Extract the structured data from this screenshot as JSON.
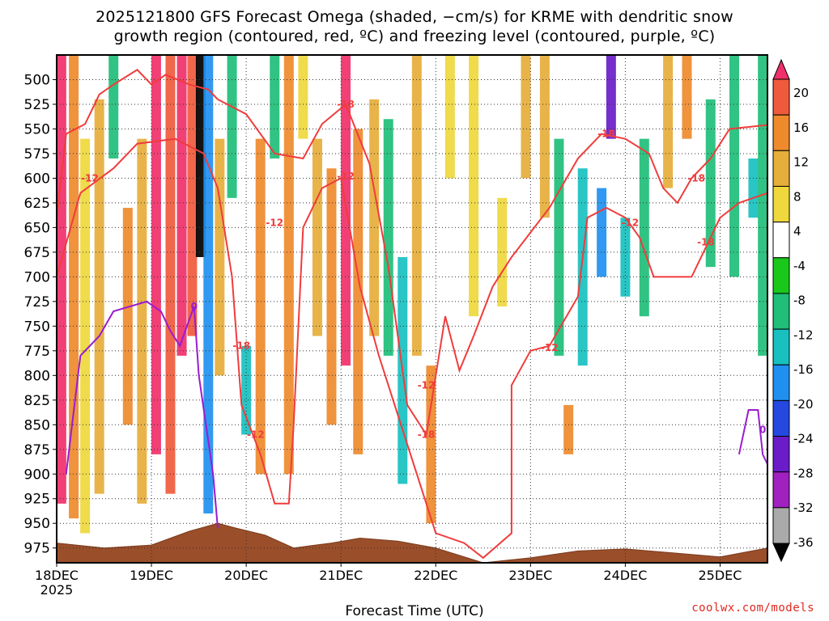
{
  "chart_data": {
    "type": "heatmap",
    "title": "2025121800 GFS Forecast Omega (shaded, −cm/s) for KRME with dendritic snow",
    "subtitle": "growth region (contoured, red, ºC) and freezing level (contoured, purple, ºC)",
    "xlabel": "Forecast Time (UTC)",
    "x_tick_labels": [
      "18DEC",
      "19DEC",
      "20DEC",
      "21DEC",
      "22DEC",
      "23DEC",
      "24DEC",
      "25DEC"
    ],
    "x_year_label": "2025",
    "x_days": [
      18,
      19,
      20,
      21,
      22,
      23,
      24,
      25
    ],
    "xlim_days": [
      18,
      25.5
    ],
    "y_tick_labels": [
      "500",
      "525",
      "550",
      "575",
      "600",
      "625",
      "650",
      "675",
      "700",
      "725",
      "750",
      "775",
      "800",
      "825",
      "850",
      "875",
      "900",
      "925",
      "950",
      "975"
    ],
    "y_levels": [
      500,
      525,
      550,
      575,
      600,
      625,
      650,
      675,
      700,
      725,
      750,
      775,
      800,
      825,
      850,
      875,
      900,
      925,
      950,
      975
    ],
    "ylim_hpa": [
      475,
      990
    ],
    "grid": true,
    "colorbar": {
      "labels": [
        "20",
        "16",
        "12",
        "8",
        "4",
        "-4",
        "-8",
        "-12",
        "-16",
        "-20",
        "-24",
        "-28",
        "-32",
        "-36"
      ],
      "colors": [
        "#f0306a",
        "#f05a3c",
        "#ee8a2c",
        "#e6ae3a",
        "#eed83c",
        "#ffffff",
        "#1ac81a",
        "#20be78",
        "#18c0c0",
        "#2090f0",
        "#2448e0",
        "#6a1cc8",
        "#a020c0",
        "#aaaaaa",
        "#000000"
      ]
    },
    "contour_labels": {
      "red": [
        "-12",
        "-18",
        "-12",
        "-18",
        "-12",
        "-18",
        "-12",
        "-12",
        "-18",
        "-12",
        "-18",
        "-12",
        "-18",
        "-12"
      ],
      "purple": [
        "0",
        "0"
      ]
    },
    "columns": [
      {
        "day": 18.05,
        "v": 20,
        "top": 475,
        "bot": 930
      },
      {
        "day": 18.18,
        "v": 12,
        "top": 475,
        "bot": 945
      },
      {
        "day": 18.3,
        "v": 4,
        "top": 560,
        "bot": 960
      },
      {
        "day": 18.45,
        "v": 8,
        "top": 520,
        "bot": 920
      },
      {
        "day": 18.6,
        "v": -8,
        "top": 475,
        "bot": 580
      },
      {
        "day": 18.75,
        "v": 12,
        "top": 630,
        "bot": 850
      },
      {
        "day": 18.9,
        "v": 8,
        "top": 560,
        "bot": 930
      },
      {
        "day": 19.05,
        "v": 20,
        "top": 475,
        "bot": 880
      },
      {
        "day": 19.2,
        "v": 16,
        "top": 475,
        "bot": 920
      },
      {
        "day": 19.32,
        "v": 20,
        "top": 475,
        "bot": 780
      },
      {
        "day": 19.43,
        "v": 16,
        "top": 475,
        "bot": 760
      },
      {
        "day": 19.52,
        "v": -36,
        "top": 475,
        "bot": 680
      },
      {
        "day": 19.6,
        "v": -16,
        "top": 475,
        "bot": 940
      },
      {
        "day": 19.72,
        "v": 8,
        "top": 560,
        "bot": 800
      },
      {
        "day": 19.85,
        "v": -8,
        "top": 475,
        "bot": 620
      },
      {
        "day": 20.0,
        "v": -12,
        "top": 770,
        "bot": 860
      },
      {
        "day": 20.15,
        "v": 12,
        "top": 560,
        "bot": 900
      },
      {
        "day": 20.3,
        "v": -8,
        "top": 475,
        "bot": 580
      },
      {
        "day": 20.45,
        "v": 12,
        "top": 475,
        "bot": 900
      },
      {
        "day": 20.6,
        "v": 4,
        "top": 475,
        "bot": 560
      },
      {
        "day": 20.75,
        "v": 8,
        "top": 560,
        "bot": 760
      },
      {
        "day": 20.9,
        "v": 12,
        "top": 590,
        "bot": 850
      },
      {
        "day": 21.05,
        "v": 20,
        "top": 475,
        "bot": 790
      },
      {
        "day": 21.18,
        "v": 12,
        "top": 550,
        "bot": 880
      },
      {
        "day": 21.35,
        "v": 8,
        "top": 520,
        "bot": 760
      },
      {
        "day": 21.5,
        "v": -8,
        "top": 540,
        "bot": 780
      },
      {
        "day": 21.65,
        "v": -12,
        "top": 680,
        "bot": 910
      },
      {
        "day": 21.8,
        "v": 8,
        "top": 475,
        "bot": 780
      },
      {
        "day": 21.95,
        "v": 12,
        "top": 790,
        "bot": 950
      },
      {
        "day": 22.15,
        "v": 4,
        "top": 475,
        "bot": 600
      },
      {
        "day": 22.4,
        "v": 4,
        "top": 475,
        "bot": 740
      },
      {
        "day": 22.7,
        "v": 4,
        "top": 620,
        "bot": 730
      },
      {
        "day": 22.95,
        "v": 8,
        "top": 475,
        "bot": 600
      },
      {
        "day": 23.15,
        "v": 8,
        "top": 475,
        "bot": 640
      },
      {
        "day": 23.3,
        "v": -8,
        "top": 560,
        "bot": 780
      },
      {
        "day": 23.4,
        "v": 12,
        "top": 830,
        "bot": 880
      },
      {
        "day": 23.55,
        "v": -12,
        "top": 590,
        "bot": 790
      },
      {
        "day": 23.75,
        "v": -16,
        "top": 610,
        "bot": 700
      },
      {
        "day": 23.85,
        "v": -24,
        "top": 475,
        "bot": 560
      },
      {
        "day": 24.0,
        "v": -12,
        "top": 640,
        "bot": 720
      },
      {
        "day": 24.2,
        "v": -8,
        "top": 560,
        "bot": 740
      },
      {
        "day": 24.45,
        "v": 8,
        "top": 475,
        "bot": 610
      },
      {
        "day": 24.65,
        "v": 12,
        "top": 475,
        "bot": 560
      },
      {
        "day": 24.9,
        "v": -8,
        "top": 520,
        "bot": 690
      },
      {
        "day": 25.15,
        "v": -8,
        "top": 475,
        "bot": 700
      },
      {
        "day": 25.35,
        "v": -12,
        "top": 580,
        "bot": 640
      },
      {
        "day": 25.45,
        "v": -8,
        "top": 475,
        "bot": 780
      }
    ],
    "red_contours": [
      {
        "label": "-12",
        "points": [
          [
            18.0,
            640
          ],
          [
            18.1,
            555
          ],
          [
            18.3,
            545
          ],
          [
            18.45,
            515
          ],
          [
            18.6,
            505
          ],
          [
            18.85,
            490
          ],
          [
            19.0,
            505
          ],
          [
            19.15,
            495
          ],
          [
            19.4,
            505
          ],
          [
            19.6,
            510
          ],
          [
            19.7,
            520
          ]
        ]
      },
      {
        "label": "-18",
        "points": [
          [
            19.7,
            520
          ],
          [
            20.0,
            535
          ],
          [
            20.3,
            575
          ],
          [
            20.6,
            580
          ],
          [
            20.8,
            545
          ],
          [
            21.05,
            525
          ],
          [
            21.3,
            585
          ],
          [
            21.5,
            690
          ],
          [
            21.7,
            830
          ],
          [
            21.9,
            860
          ],
          [
            22.1,
            740
          ],
          [
            22.25,
            795
          ],
          [
            22.4,
            760
          ],
          [
            22.6,
            710
          ],
          [
            22.8,
            680
          ],
          [
            23.0,
            655
          ],
          [
            23.2,
            630
          ],
          [
            23.5,
            580
          ],
          [
            23.75,
            555
          ],
          [
            24.0,
            560
          ],
          [
            24.25,
            575
          ],
          [
            24.4,
            610
          ],
          [
            24.55,
            625
          ],
          [
            24.7,
            600
          ],
          [
            24.9,
            580
          ],
          [
            25.1,
            550
          ],
          [
            25.5,
            546
          ]
        ]
      },
      {
        "label": "-12",
        "points": [
          [
            18.0,
            700
          ],
          [
            18.25,
            615
          ],
          [
            18.6,
            590
          ],
          [
            18.85,
            565
          ],
          [
            19.25,
            560
          ],
          [
            19.55,
            575
          ],
          [
            19.7,
            610
          ],
          [
            19.85,
            700
          ],
          [
            19.95,
            830
          ],
          [
            20.15,
            880
          ],
          [
            20.3,
            930
          ],
          [
            20.45,
            930
          ],
          [
            20.5,
            850
          ],
          [
            20.6,
            650
          ],
          [
            20.8,
            610
          ],
          [
            21.0,
            600
          ],
          [
            21.2,
            710
          ],
          [
            21.4,
            780
          ],
          [
            21.6,
            840
          ],
          [
            21.8,
            900
          ],
          [
            22.0,
            960
          ],
          [
            22.3,
            970
          ],
          [
            22.5,
            985
          ],
          [
            22.8,
            960
          ],
          [
            22.8,
            810
          ],
          [
            23.0,
            775
          ],
          [
            23.2,
            770
          ],
          [
            23.5,
            720
          ],
          [
            23.6,
            640
          ],
          [
            23.8,
            630
          ],
          [
            24.0,
            640
          ],
          [
            24.15,
            660
          ],
          [
            24.3,
            700
          ],
          [
            24.55,
            700
          ],
          [
            24.7,
            700
          ],
          [
            24.85,
            670
          ],
          [
            25.0,
            640
          ],
          [
            25.2,
            625
          ],
          [
            25.5,
            615
          ]
        ]
      }
    ],
    "purple_contours": [
      {
        "label": "0",
        "points": [
          [
            18.1,
            900
          ],
          [
            18.25,
            780
          ],
          [
            18.45,
            760
          ],
          [
            18.6,
            735
          ],
          [
            18.95,
            725
          ],
          [
            19.1,
            735
          ],
          [
            19.2,
            755
          ],
          [
            19.3,
            770
          ],
          [
            19.45,
            730
          ],
          [
            19.5,
            800
          ],
          [
            19.65,
            900
          ],
          [
            19.7,
            955
          ]
        ]
      },
      {
        "label": "0",
        "points": [
          [
            25.2,
            880
          ],
          [
            25.3,
            835
          ],
          [
            25.4,
            835
          ],
          [
            25.45,
            880
          ],
          [
            25.5,
            890
          ]
        ]
      }
    ],
    "terrain_hpa": [
      [
        18.0,
        970
      ],
      [
        18.5,
        975
      ],
      [
        19.0,
        972
      ],
      [
        19.4,
        958
      ],
      [
        19.7,
        950
      ],
      [
        19.9,
        955
      ],
      [
        20.2,
        962
      ],
      [
        20.5,
        975
      ],
      [
        20.9,
        970
      ],
      [
        21.2,
        965
      ],
      [
        21.6,
        968
      ],
      [
        22.0,
        975
      ],
      [
        22.5,
        990
      ],
      [
        23.0,
        985
      ],
      [
        23.5,
        978
      ],
      [
        24.0,
        976
      ],
      [
        24.5,
        980
      ],
      [
        25.0,
        984
      ],
      [
        25.5,
        975
      ]
    ]
  }
}
